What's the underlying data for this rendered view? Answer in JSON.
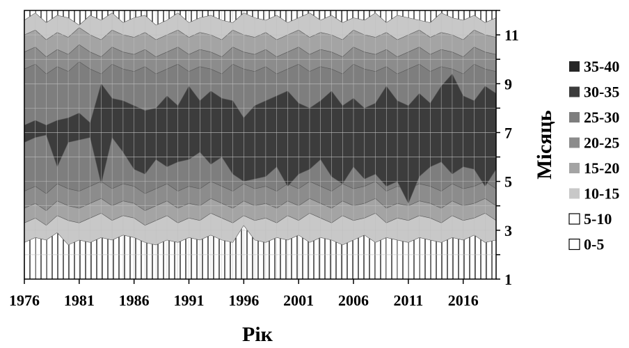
{
  "chart_data": {
    "type": "contour",
    "xlabel": "Рік",
    "ylabel": "Місяць",
    "x_ticks": [
      1976,
      1981,
      1986,
      1991,
      1996,
      2001,
      2006,
      2011,
      2016
    ],
    "y_ticks": [
      1,
      3,
      5,
      7,
      9,
      11
    ],
    "xlim": [
      1976,
      2019
    ],
    "ylim": [
      1,
      12
    ],
    "grid": true,
    "legend_position": "right",
    "levels": [
      {
        "label": "35-40",
        "color": "#262626"
      },
      {
        "label": "30-35",
        "color": "#3c3c3c"
      },
      {
        "label": "25-30",
        "color": "#7e7e7e"
      },
      {
        "label": "20-25",
        "color": "#8c8c8c"
      },
      {
        "label": "15-20",
        "color": "#a4a4a4"
      },
      {
        "label": "10-15",
        "color": "#c8c8c8"
      },
      {
        "label": "5-10",
        "color": "#ffffff"
      },
      {
        "label": "0-5",
        "color": "#ffffff"
      }
    ],
    "bands": [
      {
        "level": "10-15",
        "lower_edge": [
          2.5,
          2.7,
          2.6,
          2.9,
          2.4,
          2.6,
          2.5,
          2.7,
          2.6,
          2.8,
          2.7,
          2.5,
          2.4,
          2.6,
          2.5,
          2.7,
          2.6,
          2.8,
          2.6,
          2.5,
          3.2,
          2.6,
          2.5,
          2.7,
          2.6,
          2.8,
          2.5,
          2.7,
          2.6,
          2.4,
          2.6,
          2.8,
          2.5,
          2.7,
          2.6,
          2.5,
          2.7,
          2.6,
          2.5,
          2.7,
          2.6,
          2.8,
          2.5,
          2.6
        ],
        "upper_edge": [
          11.6,
          11.9,
          11.5,
          11.8,
          11.7,
          11.4,
          11.8,
          11.6,
          11.9,
          11.5,
          11.7,
          11.8,
          11.4,
          11.6,
          11.9,
          11.5,
          11.7,
          11.8,
          11.6,
          11.5,
          11.9,
          11.7,
          11.6,
          11.8,
          11.5,
          11.7,
          11.9,
          11.6,
          11.8,
          11.5,
          11.7,
          11.6,
          11.9,
          11.5,
          11.8,
          11.7,
          11.6,
          11.5,
          11.9,
          11.7,
          11.6,
          11.8,
          11.5,
          11.7
        ]
      },
      {
        "level": "15-20",
        "lower_edge": [
          3.3,
          3.5,
          3.2,
          3.6,
          3.4,
          3.3,
          3.5,
          3.7,
          3.4,
          3.6,
          3.5,
          3.2,
          3.4,
          3.6,
          3.3,
          3.5,
          3.4,
          3.7,
          3.5,
          3.3,
          3.6,
          3.4,
          3.5,
          3.3,
          3.6,
          3.4,
          3.7,
          3.5,
          3.3,
          3.6,
          3.4,
          3.5,
          3.7,
          3.3,
          3.5,
          3.4,
          3.6,
          3.5,
          3.3,
          3.6,
          3.4,
          3.5,
          3.7,
          3.4
        ],
        "upper_edge": [
          11.0,
          11.2,
          10.8,
          11.1,
          10.9,
          11.3,
          11.0,
          10.8,
          11.2,
          11.0,
          10.9,
          11.1,
          10.8,
          11.0,
          11.2,
          10.9,
          11.1,
          11.0,
          10.8,
          11.2,
          11.0,
          10.9,
          11.1,
          10.8,
          11.0,
          11.2,
          10.9,
          11.1,
          11.0,
          10.8,
          11.2,
          11.0,
          10.9,
          11.1,
          10.8,
          11.0,
          11.2,
          10.9,
          11.1,
          11.0,
          10.8,
          11.2,
          11.0,
          10.9
        ]
      },
      {
        "level": "20-25",
        "lower_edge": [
          3.9,
          4.1,
          3.8,
          4.2,
          4.0,
          3.9,
          4.1,
          4.3,
          4.0,
          4.2,
          4.1,
          3.8,
          4.0,
          4.2,
          3.9,
          4.1,
          4.0,
          4.3,
          4.1,
          3.9,
          4.2,
          4.0,
          4.1,
          3.9,
          4.2,
          4.0,
          4.3,
          4.1,
          3.9,
          4.2,
          4.0,
          4.1,
          4.3,
          3.9,
          4.1,
          4.0,
          4.2,
          4.1,
          3.9,
          4.2,
          4.0,
          4.1,
          4.3,
          4.0
        ],
        "upper_edge": [
          10.3,
          10.5,
          10.1,
          10.4,
          10.2,
          10.6,
          10.3,
          10.1,
          10.5,
          10.3,
          10.2,
          10.4,
          10.1,
          10.3,
          10.5,
          10.2,
          10.4,
          10.3,
          10.1,
          10.5,
          10.3,
          10.2,
          10.4,
          10.1,
          10.3,
          10.5,
          10.2,
          10.4,
          10.3,
          10.1,
          10.5,
          10.3,
          10.2,
          10.4,
          10.1,
          10.3,
          10.5,
          10.2,
          10.4,
          10.3,
          10.1,
          10.5,
          10.3,
          10.2
        ]
      },
      {
        "level": "25-30",
        "lower_edge": [
          4.6,
          4.8,
          4.5,
          4.9,
          4.7,
          4.6,
          4.8,
          5.0,
          4.7,
          4.9,
          4.8,
          4.5,
          4.7,
          4.9,
          4.6,
          4.8,
          4.7,
          5.0,
          4.8,
          4.6,
          4.9,
          4.7,
          4.8,
          4.6,
          4.9,
          4.7,
          5.0,
          4.8,
          4.6,
          4.9,
          4.7,
          4.8,
          5.0,
          4.6,
          4.8,
          4.7,
          4.9,
          4.8,
          4.6,
          4.9,
          4.7,
          4.8,
          5.0,
          4.7
        ],
        "upper_edge": [
          9.6,
          9.8,
          9.4,
          9.7,
          9.5,
          9.9,
          9.6,
          9.4,
          9.8,
          9.6,
          9.5,
          9.7,
          9.4,
          9.6,
          9.8,
          9.5,
          9.7,
          9.6,
          9.4,
          9.8,
          9.6,
          9.5,
          9.7,
          9.4,
          9.6,
          9.8,
          9.5,
          9.7,
          9.6,
          9.4,
          9.8,
          9.6,
          9.5,
          9.7,
          9.4,
          9.6,
          9.8,
          9.5,
          9.7,
          9.6,
          9.4,
          9.8,
          9.6,
          9.5
        ]
      },
      {
        "level": "30-35",
        "lower_edge": [
          6.6,
          6.8,
          6.9,
          5.6,
          6.6,
          6.7,
          6.8,
          4.9,
          6.8,
          6.2,
          5.5,
          5.3,
          5.9,
          5.6,
          5.8,
          5.9,
          6.2,
          5.7,
          6.0,
          5.3,
          5.0,
          5.1,
          5.2,
          5.6,
          4.8,
          5.3,
          5.5,
          5.9,
          5.2,
          4.9,
          5.6,
          5.1,
          5.3,
          4.8,
          5.0,
          4.1,
          5.2,
          5.6,
          5.8,
          5.3,
          5.6,
          5.5,
          4.8,
          5.5
        ],
        "upper_edge": [
          7.3,
          7.5,
          7.3,
          7.5,
          7.6,
          7.8,
          7.4,
          9.0,
          8.4,
          8.3,
          8.1,
          7.9,
          8.0,
          8.5,
          8.1,
          8.9,
          8.3,
          8.7,
          8.4,
          8.3,
          7.6,
          8.1,
          8.3,
          8.5,
          8.7,
          8.2,
          8.0,
          8.3,
          8.7,
          8.1,
          8.4,
          8.0,
          8.2,
          8.9,
          8.3,
          8.1,
          8.6,
          8.2,
          8.9,
          9.4,
          8.5,
          8.3,
          8.9,
          8.6
        ]
      }
    ]
  }
}
